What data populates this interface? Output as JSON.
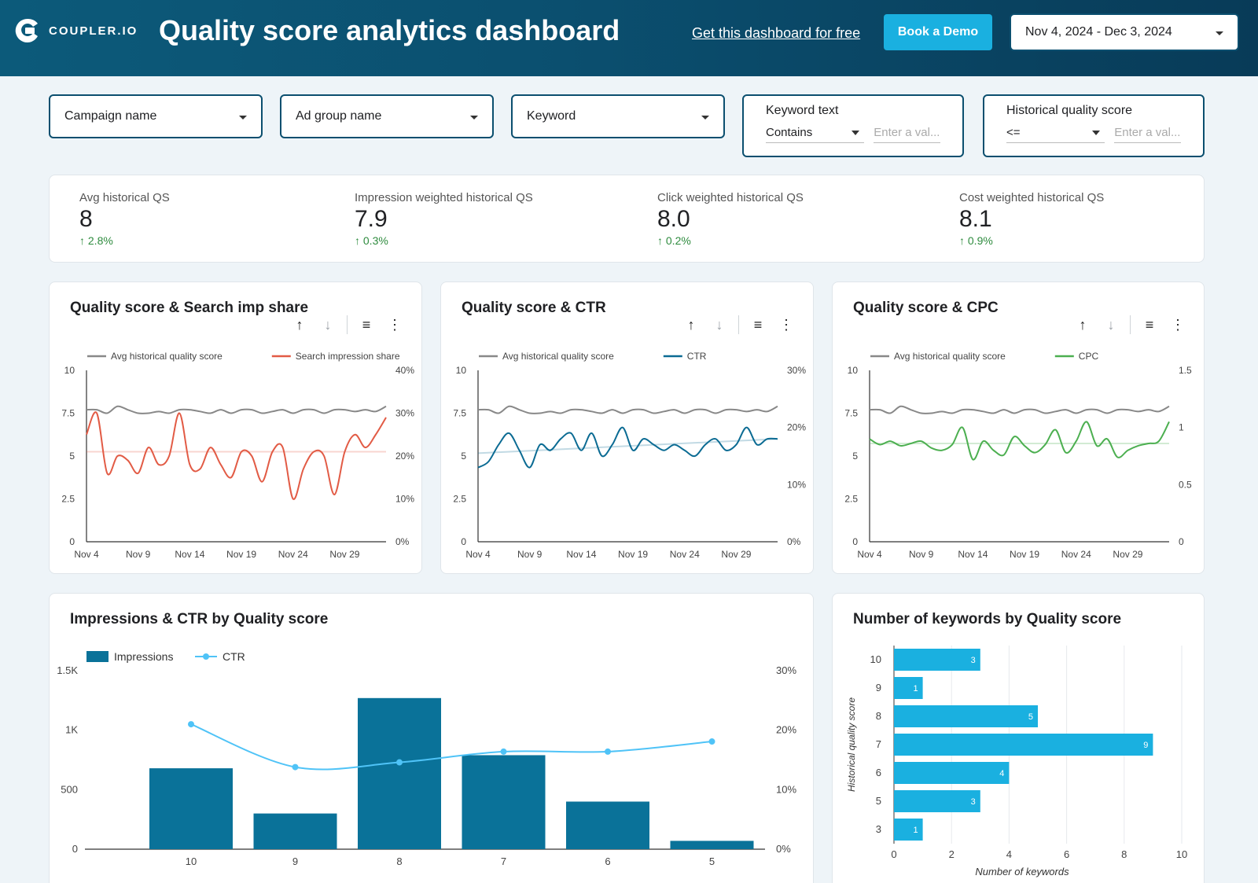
{
  "header": {
    "logo_text": "COUPLER.IO",
    "title": "Quality score analytics dashboard",
    "get_link": "Get this dashboard for free",
    "demo_button": "Book a Demo",
    "date_range": "Nov 4, 2024 - Dec 3, 2024"
  },
  "filters": {
    "campaign": "Campaign name",
    "ad_group": "Ad group name",
    "keyword": "Keyword",
    "keyword_text": {
      "label": "Keyword text",
      "operator": "Contains",
      "placeholder": "Enter a val..."
    },
    "hist_qs": {
      "label": "Historical quality score",
      "operator": "<=",
      "placeholder": "Enter a val..."
    }
  },
  "kpis": [
    {
      "label": "Avg historical QS",
      "value": "8",
      "delta": "2.8%"
    },
    {
      "label": "Impression weighted historical QS",
      "value": "7.9",
      "delta": "0.3%"
    },
    {
      "label": "Click weighted historical QS",
      "value": "8.0",
      "delta": "0.2%"
    },
    {
      "label": "Cost weighted historical QS",
      "value": "8.1",
      "delta": "0.9%"
    }
  ],
  "colors": {
    "grey": "#888888",
    "red": "#e25b45",
    "blue": "#0b6b93",
    "green": "#4caf50",
    "bar": "#0a7299",
    "bar2": "#1ab0e0",
    "ctr": "#4fc3f7"
  },
  "chart_data": [
    {
      "type": "line",
      "title": "Quality score & Search imp share",
      "x_ticks": [
        "Nov 4",
        "Nov 9",
        "Nov 14",
        "Nov 19",
        "Nov 24",
        "Nov 29"
      ],
      "y_left_ticks": [
        "10",
        "7.5",
        "5",
        "2.5",
        "0"
      ],
      "y_right_ticks": [
        "40%",
        "30%",
        "20%",
        "10%",
        "0%"
      ],
      "ylim_left": [
        0,
        10
      ],
      "ylim_right": [
        0,
        40
      ],
      "series": [
        {
          "name": "Avg historical quality score",
          "axis": "left",
          "color": "#888888",
          "values": [
            7.7,
            7.7,
            7.5,
            7.9,
            7.7,
            7.5,
            7.5,
            7.6,
            7.5,
            7.7,
            7.7,
            7.6,
            7.5,
            7.7,
            7.5,
            7.7,
            7.7,
            7.5,
            7.6,
            7.7,
            7.5,
            7.7,
            7.7,
            7.5,
            7.7,
            7.7,
            7.6,
            7.7,
            7.6,
            7.9
          ]
        },
        {
          "name": "Search impression share",
          "axis": "right",
          "color": "#e25b45",
          "trend": [
            21,
            21
          ],
          "values": [
            25,
            30,
            16,
            20,
            19,
            16,
            22,
            18,
            20,
            30,
            18,
            17,
            22,
            18,
            15,
            21,
            20,
            14,
            21,
            22,
            10,
            17,
            21,
            20,
            11,
            21,
            25,
            22,
            25,
            29
          ]
        }
      ]
    },
    {
      "type": "line",
      "title": "Quality score & CTR",
      "x_ticks": [
        "Nov 4",
        "Nov 9",
        "Nov 14",
        "Nov 19",
        "Nov 24",
        "Nov 29"
      ],
      "y_left_ticks": [
        "10",
        "7.5",
        "5",
        "2.5",
        "0"
      ],
      "y_right_ticks": [
        "30%",
        "20%",
        "10%",
        "0%"
      ],
      "ylim_left": [
        0,
        10
      ],
      "ylim_right": [
        0,
        30
      ],
      "series": [
        {
          "name": "Avg historical quality score",
          "axis": "left",
          "color": "#888888",
          "values": [
            7.7,
            7.7,
            7.5,
            7.9,
            7.7,
            7.5,
            7.5,
            7.6,
            7.5,
            7.7,
            7.7,
            7.6,
            7.5,
            7.7,
            7.5,
            7.7,
            7.7,
            7.5,
            7.6,
            7.7,
            7.5,
            7.7,
            7.7,
            7.5,
            7.7,
            7.7,
            7.6,
            7.7,
            7.6,
            7.9
          ]
        },
        {
          "name": "CTR",
          "axis": "right",
          "color": "#0b6b93",
          "trend": [
            15.5,
            18
          ],
          "values": [
            13,
            14,
            17,
            19,
            16,
            13,
            17,
            16,
            18,
            19,
            16,
            19,
            15,
            17,
            20,
            16,
            18,
            17,
            16,
            17,
            16,
            15,
            17,
            18,
            16,
            17,
            20,
            17,
            18,
            18
          ]
        }
      ]
    },
    {
      "type": "line",
      "title": "Quality score & CPC",
      "x_ticks": [
        "Nov 4",
        "Nov 9",
        "Nov 14",
        "Nov 19",
        "Nov 24",
        "Nov 29"
      ],
      "y_left_ticks": [
        "10",
        "7.5",
        "5",
        "2.5",
        "0"
      ],
      "y_right_ticks": [
        "1.5",
        "1",
        "0.5",
        "0"
      ],
      "ylim_left": [
        0,
        10
      ],
      "ylim_right": [
        0,
        1.5
      ],
      "series": [
        {
          "name": "Avg historical quality score",
          "axis": "left",
          "color": "#888888",
          "values": [
            7.7,
            7.7,
            7.5,
            7.9,
            7.7,
            7.5,
            7.5,
            7.6,
            7.5,
            7.7,
            7.7,
            7.6,
            7.5,
            7.7,
            7.5,
            7.7,
            7.7,
            7.5,
            7.6,
            7.7,
            7.5,
            7.7,
            7.7,
            7.5,
            7.7,
            7.7,
            7.6,
            7.7,
            7.6,
            7.9
          ]
        },
        {
          "name": "CPC",
          "axis": "right",
          "color": "#4caf50",
          "trend": [
            0.86,
            0.86
          ],
          "values": [
            0.9,
            0.85,
            0.88,
            0.84,
            0.86,
            0.88,
            0.82,
            0.8,
            0.85,
            1.0,
            0.72,
            0.88,
            0.8,
            0.76,
            0.92,
            0.84,
            0.78,
            0.85,
            0.98,
            0.78,
            0.88,
            1.05,
            0.84,
            0.9,
            0.74,
            0.8,
            0.84,
            0.86,
            0.88,
            1.05
          ]
        }
      ]
    },
    {
      "type": "bar",
      "title": "Impressions & CTR by Quality score",
      "categories": [
        "10",
        "9",
        "8",
        "7",
        "6",
        "5"
      ],
      "legend": [
        "Impressions",
        "CTR"
      ],
      "series": [
        {
          "name": "Impressions",
          "values": [
            680,
            300,
            1270,
            790,
            400,
            70
          ]
        },
        {
          "name": "CTR",
          "values": [
            21,
            13.8,
            14.6,
            16.4,
            16.4,
            18.1
          ]
        }
      ],
      "y_left_ticks": [
        "1.5K",
        "1K",
        "500",
        "0"
      ],
      "y_right_ticks": [
        "30%",
        "20%",
        "10%",
        "0%"
      ],
      "ylim_left": [
        0,
        1500
      ],
      "ylim_right": [
        0,
        30
      ]
    },
    {
      "type": "bar",
      "orientation": "horizontal",
      "title": "Number of keywords by Quality score",
      "categories": [
        "10",
        "9",
        "8",
        "7",
        "6",
        "5",
        "3"
      ],
      "values": [
        3,
        1,
        5,
        9,
        4,
        3,
        1
      ],
      "xlabel": "Number of keywords",
      "ylabel": "Historical quality score",
      "x_ticks": [
        "0",
        "2",
        "4",
        "6",
        "8",
        "10"
      ],
      "xlim": [
        0,
        10
      ]
    }
  ]
}
